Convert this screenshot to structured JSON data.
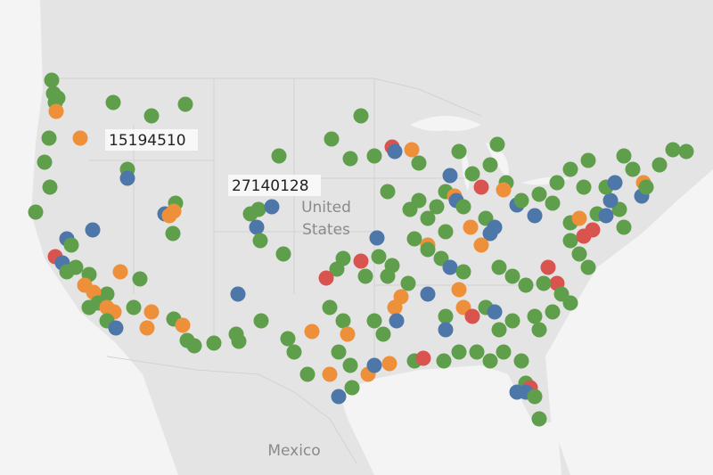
{
  "map": {
    "mark_labels": [
      "15194510",
      "27140128"
    ],
    "places": {
      "country_lines": [
        "United",
        "States"
      ],
      "neighbor": "Mexico"
    }
  }
}
